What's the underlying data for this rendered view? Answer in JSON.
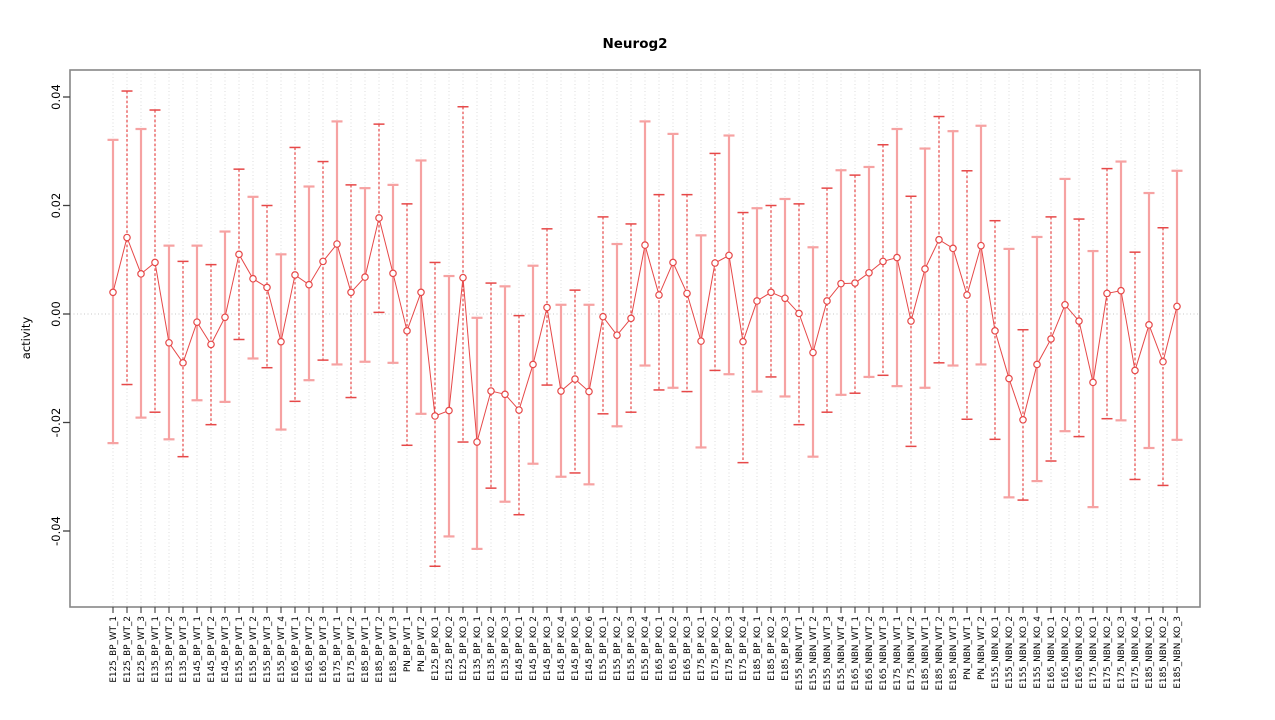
{
  "chart_data": {
    "type": "scatter-errorbar",
    "title": "Neurog2",
    "ylabel": "activity",
    "xlabel": "",
    "ylim": [
      -0.054,
      0.045
    ],
    "y_ticks": [
      0.04,
      0.02,
      0.0,
      -0.02,
      -0.04
    ],
    "y_tick_labels": [
      "0.04",
      "0.02",
      "0.00",
      "-0.02",
      "-0.04"
    ],
    "grid": {
      "vertical_per_category": true,
      "horizontal_zero_line": true,
      "style": "dotted"
    },
    "legend": "none",
    "colors": {
      "point": "#e64848",
      "line": "#e64848",
      "errorbar_dark": "#e64848",
      "errorbar_light": "#f6a2a2",
      "grid": "#dcdcdc",
      "zero_line": "#c8c8c8",
      "axis_box": "#878787",
      "tick": "#3f3f3f",
      "text": "#000000"
    },
    "points": [
      {
        "label": "E125_BP_WT_1",
        "value": 0.004,
        "lo": -0.0238,
        "hi": 0.0321
      },
      {
        "label": "E125_BP_WT_2",
        "value": 0.0141,
        "lo": -0.013,
        "hi": 0.0411
      },
      {
        "label": "E125_BP_WT_3",
        "value": 0.0074,
        "lo": -0.0191,
        "hi": 0.0341
      },
      {
        "label": "E135_BP_WT_1",
        "value": 0.0095,
        "lo": -0.0181,
        "hi": 0.0376
      },
      {
        "label": "E135_BP_WT_2",
        "value": -0.0053,
        "lo": -0.0231,
        "hi": 0.0126
      },
      {
        "label": "E135_BP_WT_3",
        "value": -0.009,
        "lo": -0.0263,
        "hi": 0.0097
      },
      {
        "label": "E145_BP_WT_1",
        "value": -0.0015,
        "lo": -0.0159,
        "hi": 0.0126
      },
      {
        "label": "E145_BP_WT_2",
        "value": -0.0056,
        "lo": -0.0204,
        "hi": 0.0091
      },
      {
        "label": "E145_BP_WT_3",
        "value": -0.0006,
        "lo": -0.0162,
        "hi": 0.0152
      },
      {
        "label": "E155_BP_WT_1",
        "value": 0.011,
        "lo": -0.0047,
        "hi": 0.0267
      },
      {
        "label": "E155_BP_WT_2",
        "value": 0.0065,
        "lo": -0.0082,
        "hi": 0.0216
      },
      {
        "label": "E155_BP_WT_3",
        "value": 0.0049,
        "lo": -0.0099,
        "hi": 0.02
      },
      {
        "label": "E155_BP_WT_4",
        "value": -0.0051,
        "lo": -0.0213,
        "hi": 0.011
      },
      {
        "label": "E165_BP_WT_1",
        "value": 0.0072,
        "lo": -0.0161,
        "hi": 0.0307
      },
      {
        "label": "E165_BP_WT_2",
        "value": 0.0054,
        "lo": -0.0122,
        "hi": 0.0235
      },
      {
        "label": "E165_BP_WT_3",
        "value": 0.0097,
        "lo": -0.0085,
        "hi": 0.0281
      },
      {
        "label": "E175_BP_WT_1",
        "value": 0.0129,
        "lo": -0.0093,
        "hi": 0.0355
      },
      {
        "label": "E175_BP_WT_2",
        "value": 0.004,
        "lo": -0.0154,
        "hi": 0.0238
      },
      {
        "label": "E185_BP_WT_1",
        "value": 0.0068,
        "lo": -0.0088,
        "hi": 0.0232
      },
      {
        "label": "E185_BP_WT_2",
        "value": 0.0177,
        "lo": 0.0003,
        "hi": 0.035
      },
      {
        "label": "E185_BP_WT_3",
        "value": 0.0075,
        "lo": -0.009,
        "hi": 0.0238
      },
      {
        "label": "PN_BP_WT_1",
        "value": -0.0031,
        "lo": -0.0242,
        "hi": 0.0203
      },
      {
        "label": "PN_BP_WT_2",
        "value": 0.004,
        "lo": -0.0184,
        "hi": 0.0283
      },
      {
        "label": "E125_BP_KO_1",
        "value": -0.0188,
        "lo": -0.0465,
        "hi": 0.0095
      },
      {
        "label": "E125_BP_KO_2",
        "value": -0.0178,
        "lo": -0.041,
        "hi": 0.007
      },
      {
        "label": "E125_BP_KO_3",
        "value": 0.0067,
        "lo": -0.0236,
        "hi": 0.0382
      },
      {
        "label": "E135_BP_KO_1",
        "value": -0.0236,
        "lo": -0.0433,
        "hi": -0.0007
      },
      {
        "label": "E135_BP_KO_2",
        "value": -0.0142,
        "lo": -0.0321,
        "hi": 0.0057
      },
      {
        "label": "E135_BP_KO_3",
        "value": -0.0148,
        "lo": -0.0346,
        "hi": 0.0051
      },
      {
        "label": "E145_BP_KO_1",
        "value": -0.0177,
        "lo": -0.037,
        "hi": -0.0003
      },
      {
        "label": "E145_BP_KO_2",
        "value": -0.0093,
        "lo": -0.0276,
        "hi": 0.0089
      },
      {
        "label": "E145_BP_KO_3",
        "value": 0.0012,
        "lo": -0.0131,
        "hi": 0.0157
      },
      {
        "label": "E145_BP_KO_4",
        "value": -0.0142,
        "lo": -0.03,
        "hi": 0.0017
      },
      {
        "label": "E145_BP_KO_5",
        "value": -0.012,
        "lo": -0.0293,
        "hi": 0.0044
      },
      {
        "label": "E145_BP_KO_6",
        "value": -0.0143,
        "lo": -0.0314,
        "hi": 0.0017
      },
      {
        "label": "E155_BP_KO_1",
        "value": -0.0005,
        "lo": -0.0184,
        "hi": 0.0179
      },
      {
        "label": "E155_BP_KO_2",
        "value": -0.0039,
        "lo": -0.0207,
        "hi": 0.0129
      },
      {
        "label": "E155_BP_KO_3",
        "value": -0.0008,
        "lo": -0.0181,
        "hi": 0.0166
      },
      {
        "label": "E155_BP_KO_4",
        "value": 0.0127,
        "lo": -0.0095,
        "hi": 0.0355
      },
      {
        "label": "E165_BP_KO_1",
        "value": 0.0035,
        "lo": -0.014,
        "hi": 0.022
      },
      {
        "label": "E165_BP_KO_2",
        "value": 0.0095,
        "lo": -0.0136,
        "hi": 0.0332
      },
      {
        "label": "E165_BP_KO_3",
        "value": 0.0038,
        "lo": -0.0143,
        "hi": 0.022
      },
      {
        "label": "E175_BP_KO_1",
        "value": -0.005,
        "lo": -0.0246,
        "hi": 0.0145
      },
      {
        "label": "E175_BP_KO_2",
        "value": 0.0094,
        "lo": -0.0104,
        "hi": 0.0296
      },
      {
        "label": "E175_BP_KO_3",
        "value": 0.0108,
        "lo": -0.0111,
        "hi": 0.0329
      },
      {
        "label": "E175_BP_KO_4",
        "value": -0.0051,
        "lo": -0.0274,
        "hi": 0.0187
      },
      {
        "label": "E185_BP_KO_1",
        "value": 0.0024,
        "lo": -0.0143,
        "hi": 0.0195
      },
      {
        "label": "E185_BP_KO_2",
        "value": 0.004,
        "lo": -0.0116,
        "hi": 0.02
      },
      {
        "label": "E185_BP_KO_3",
        "value": 0.0029,
        "lo": -0.0152,
        "hi": 0.0212
      },
      {
        "label": "E155_NBN_WT_1",
        "value": 0.0001,
        "lo": -0.0204,
        "hi": 0.0203
      },
      {
        "label": "E155_NBN_WT_2",
        "value": -0.0071,
        "lo": -0.0263,
        "hi": 0.0123
      },
      {
        "label": "E155_NBN_WT_3",
        "value": 0.0024,
        "lo": -0.0181,
        "hi": 0.0232
      },
      {
        "label": "E155_NBN_WT_4",
        "value": 0.0056,
        "lo": -0.0149,
        "hi": 0.0265
      },
      {
        "label": "E165_NBN_WT_1",
        "value": 0.0057,
        "lo": -0.0146,
        "hi": 0.0256
      },
      {
        "label": "E165_NBN_WT_2",
        "value": 0.0076,
        "lo": -0.0116,
        "hi": 0.0271
      },
      {
        "label": "E165_NBN_WT_3",
        "value": 0.0097,
        "lo": -0.0113,
        "hi": 0.0312
      },
      {
        "label": "E175_NBN_WT_1",
        "value": 0.0104,
        "lo": -0.0133,
        "hi": 0.0341
      },
      {
        "label": "E175_NBN_WT_2",
        "value": -0.0013,
        "lo": -0.0244,
        "hi": 0.0217
      },
      {
        "label": "E185_NBN_WT_1",
        "value": 0.0083,
        "lo": -0.0136,
        "hi": 0.0305
      },
      {
        "label": "E185_NBN_WT_2",
        "value": 0.0137,
        "lo": -0.009,
        "hi": 0.0364
      },
      {
        "label": "E185_NBN_WT_3",
        "value": 0.0121,
        "lo": -0.0095,
        "hi": 0.0337
      },
      {
        "label": "PN_NBN_WT_1",
        "value": 0.0035,
        "lo": -0.0194,
        "hi": 0.0264
      },
      {
        "label": "PN_NBN_WT_2",
        "value": 0.0126,
        "lo": -0.0093,
        "hi": 0.0347
      },
      {
        "label": "E155_NBN_KO_1",
        "value": -0.0031,
        "lo": -0.0231,
        "hi": 0.0172
      },
      {
        "label": "E155_NBN_KO_2",
        "value": -0.0119,
        "lo": -0.0338,
        "hi": 0.012
      },
      {
        "label": "E155_NBN_KO_3",
        "value": -0.0195,
        "lo": -0.0343,
        "hi": -0.0029
      },
      {
        "label": "E155_NBN_KO_4",
        "value": -0.0093,
        "lo": -0.0308,
        "hi": 0.0142
      },
      {
        "label": "E165_NBN_KO_1",
        "value": -0.0046,
        "lo": -0.0271,
        "hi": 0.0179
      },
      {
        "label": "E165_NBN_KO_2",
        "value": 0.0017,
        "lo": -0.0216,
        "hi": 0.0249
      },
      {
        "label": "E165_NBN_KO_3",
        "value": -0.0013,
        "lo": -0.0226,
        "hi": 0.0175
      },
      {
        "label": "E175_NBN_KO_1",
        "value": -0.0126,
        "lo": -0.0356,
        "hi": 0.0116
      },
      {
        "label": "E175_NBN_KO_2",
        "value": 0.0038,
        "lo": -0.0193,
        "hi": 0.0268
      },
      {
        "label": "E175_NBN_KO_3",
        "value": 0.0043,
        "lo": -0.0196,
        "hi": 0.0281
      },
      {
        "label": "E175_NBN_KO_4",
        "value": -0.0104,
        "lo": -0.0305,
        "hi": 0.0114
      },
      {
        "label": "E185_NBN_KO_1",
        "value": -0.002,
        "lo": -0.0247,
        "hi": 0.0223
      },
      {
        "label": "E185_NBN_KO_2",
        "value": -0.0088,
        "lo": -0.0316,
        "hi": 0.0159
      },
      {
        "label": "E185_NBN_KO_3",
        "value": 0.0014,
        "lo": -0.0232,
        "hi": 0.0264
      }
    ]
  }
}
